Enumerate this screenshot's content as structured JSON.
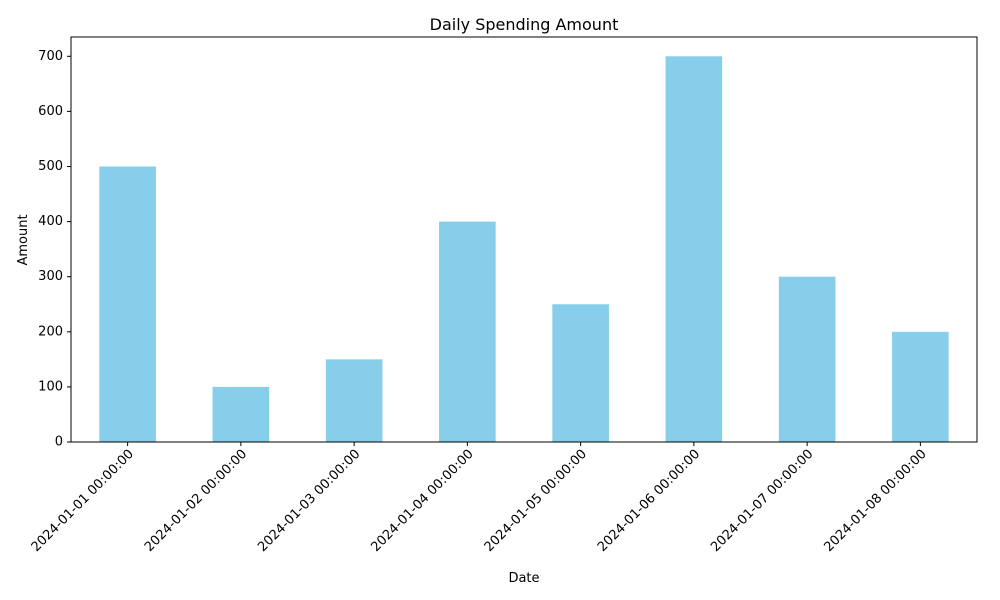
{
  "chart_data": {
    "type": "bar",
    "title": "Daily Spending Amount",
    "xlabel": "Date",
    "ylabel": "Amount",
    "categories": [
      "2024-01-01 00:00:00",
      "2024-01-02 00:00:00",
      "2024-01-03 00:00:00",
      "2024-01-04 00:00:00",
      "2024-01-05 00:00:00",
      "2024-01-06 00:00:00",
      "2024-01-07 00:00:00",
      "2024-01-08 00:00:00"
    ],
    "values": [
      500,
      100,
      150,
      400,
      250,
      700,
      300,
      200
    ],
    "ylim": [
      0,
      735
    ],
    "yticks": [
      0,
      100,
      200,
      300,
      400,
      500,
      600,
      700
    ],
    "bar_color": "#87ceeb",
    "grid": false,
    "x_tick_rotation_deg": 45
  }
}
